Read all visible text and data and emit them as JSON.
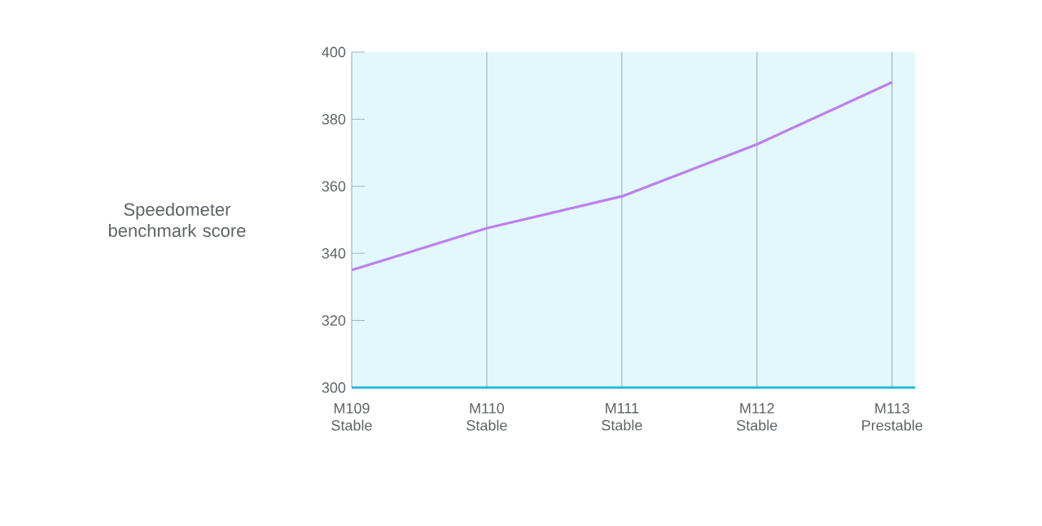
{
  "chart_data": {
    "type": "line",
    "ylabel": "Speedometer benchmark score",
    "categories": [
      "M109 Stable",
      "M110 Stable",
      "M111 Stable",
      "M112 Stable",
      "M113 Prestable"
    ],
    "values": [
      335,
      347.5,
      357,
      372.5,
      391
    ],
    "color": "#bb80ee",
    "ylim": [
      300,
      400
    ],
    "yticks": [
      300,
      320,
      340,
      360,
      380,
      400
    ],
    "grid": "x",
    "marker": "none",
    "line_style": "solid"
  }
}
